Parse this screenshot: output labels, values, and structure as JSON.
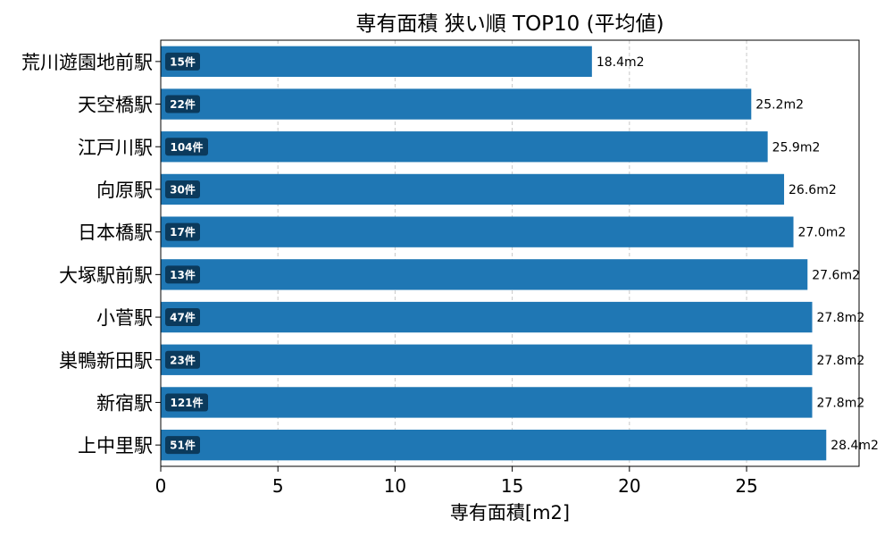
{
  "chart_data": {
    "type": "bar",
    "orientation": "horizontal",
    "title": "専有面積 狭い順 TOP10 (平均値)",
    "xlabel": "専有面積[m2]",
    "ylabel": "",
    "xlim": [
      0,
      29.8
    ],
    "xticks": [
      0,
      5,
      10,
      15,
      20,
      25
    ],
    "grid": "x-dashed",
    "bar_color": "#1f77b4",
    "badge_color": "#0b3a5c",
    "categories": [
      "荒川遊園地前駅",
      "天空橋駅",
      "江戸川駅",
      "向原駅",
      "日本橋駅",
      "大塚駅前駅",
      "小菅駅",
      "巣鴨新田駅",
      "新宿駅",
      "上中里駅"
    ],
    "values": [
      18.4,
      25.2,
      25.9,
      26.6,
      27.0,
      27.6,
      27.8,
      27.8,
      27.8,
      28.4
    ],
    "value_labels": [
      "18.4m2",
      "25.2m2",
      "25.9m2",
      "26.6m2",
      "27.0m2",
      "27.6m2",
      "27.8m2",
      "27.8m2",
      "27.8m2",
      "28.4m2"
    ],
    "counts": [
      "15件",
      "22件",
      "104件",
      "30件",
      "17件",
      "13件",
      "47件",
      "23件",
      "121件",
      "51件"
    ]
  }
}
